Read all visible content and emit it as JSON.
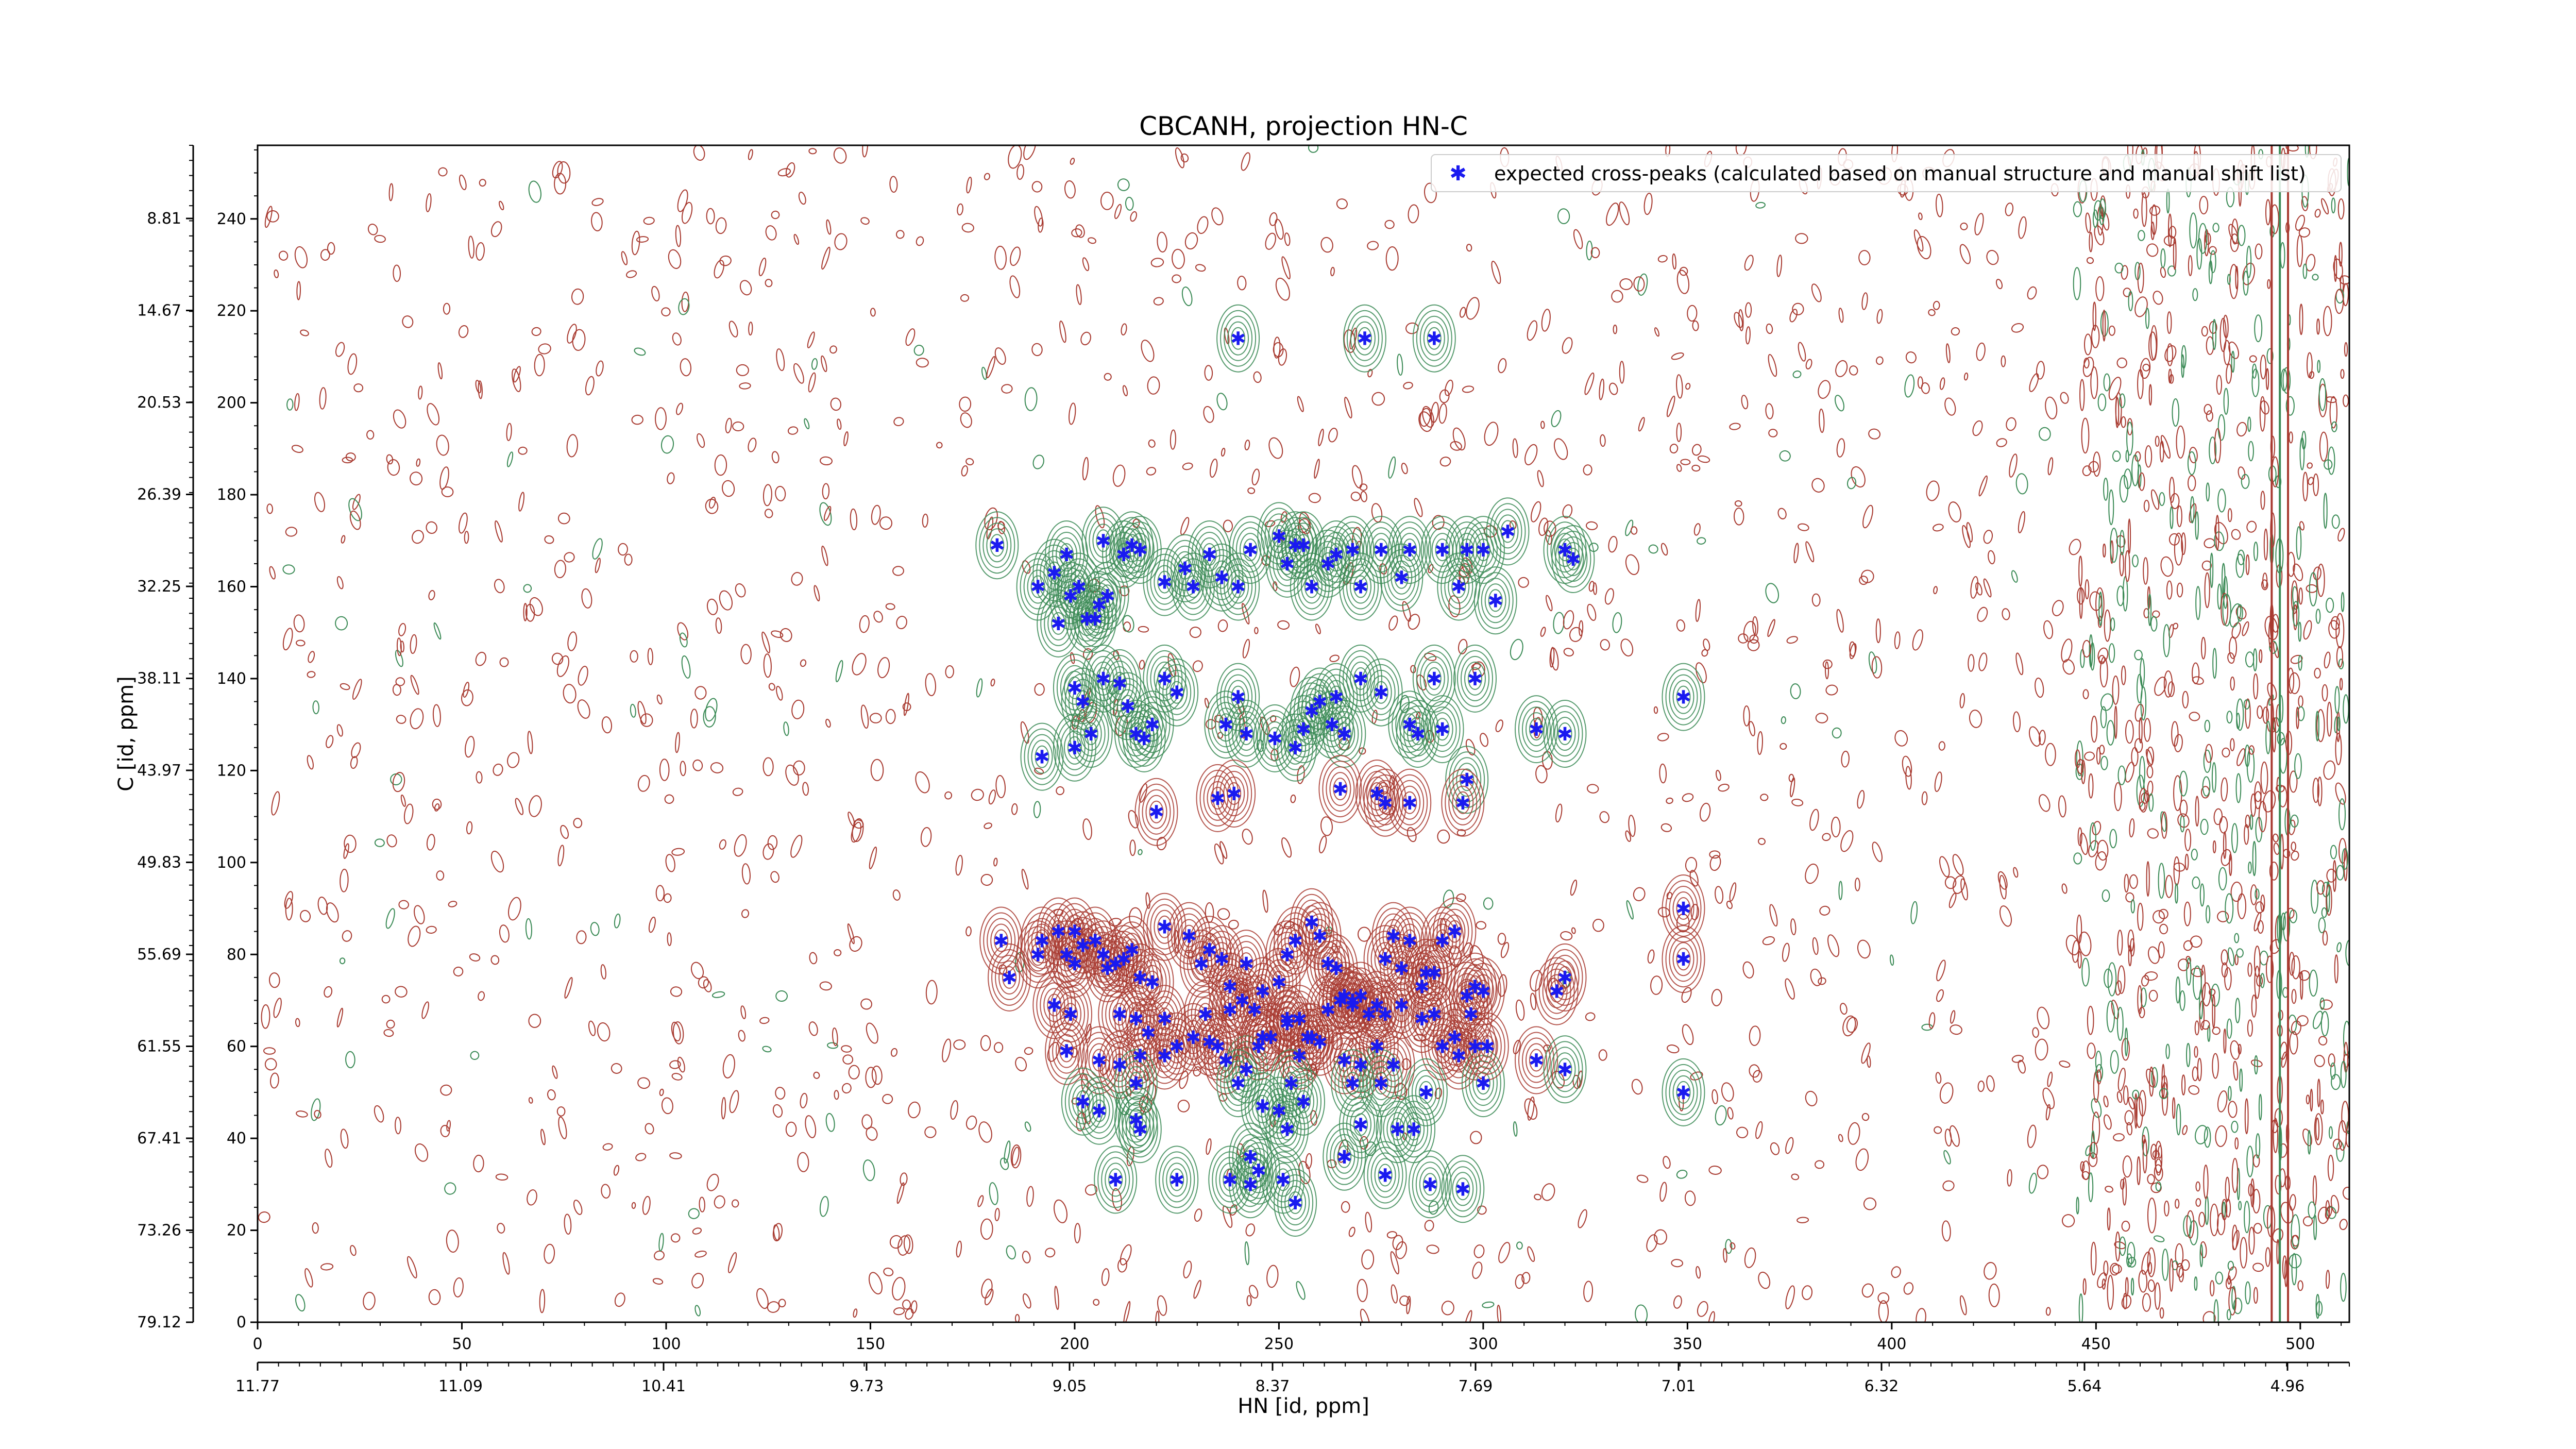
{
  "chart_data": {
    "type": "scatter",
    "title": "CBCANH, projection HN-C",
    "xlabel": "HN [id, ppm]",
    "ylabel": "C [id, ppm]",
    "xlim": [
      0,
      512
    ],
    "ylim": [
      0,
      256
    ],
    "x_ticks": [
      0,
      50,
      100,
      150,
      200,
      250,
      300,
      350,
      400,
      450,
      500
    ],
    "y_ticks": [
      0,
      20,
      40,
      60,
      80,
      100,
      120,
      140,
      160,
      180,
      200,
      220,
      240
    ],
    "hn_ppm_labels": [
      "11.77",
      "11.09",
      "10.41",
      "9.73",
      "9.05",
      "8.37",
      "7.69",
      "7.01",
      "6.32",
      "5.64",
      "4.96"
    ],
    "c_ppm_labels": [
      "8.81",
      "14.67",
      "20.53",
      "26.39",
      "32.25",
      "38.11",
      "43.97",
      "49.83",
      "55.69",
      "61.55",
      "67.41",
      "73.26",
      "79.12"
    ],
    "legend": {
      "position": "top-right",
      "label": "expected cross-peaks (calculated based on manual structure and manual shift list)"
    },
    "colors": {
      "positive_contour": "#3a8a55",
      "negative_contour": "#a83a30",
      "marker": "#1a1af0"
    },
    "series": [
      {
        "name": "expected cross-peaks (calculated based on manual structure and manual shift list)",
        "points": [
          [
            240,
            214
          ],
          [
            271,
            214
          ],
          [
            288,
            214
          ],
          [
            181,
            169
          ],
          [
            191,
            160
          ],
          [
            195,
            163
          ],
          [
            198,
            167
          ],
          [
            199,
            158
          ],
          [
            201,
            160
          ],
          [
            196,
            152
          ],
          [
            203,
            153
          ],
          [
            205,
            153
          ],
          [
            206,
            156
          ],
          [
            208,
            158
          ],
          [
            212,
            167
          ],
          [
            214,
            169
          ],
          [
            216,
            168
          ],
          [
            207,
            170
          ],
          [
            222,
            161
          ],
          [
            227,
            164
          ],
          [
            229,
            160
          ],
          [
            233,
            167
          ],
          [
            236,
            162
          ],
          [
            240,
            160
          ],
          [
            243,
            168
          ],
          [
            250,
            171
          ],
          [
            252,
            165
          ],
          [
            254,
            169
          ],
          [
            256,
            169
          ],
          [
            258,
            160
          ],
          [
            262,
            165
          ],
          [
            264,
            167
          ],
          [
            268,
            168
          ],
          [
            270,
            160
          ],
          [
            275,
            168
          ],
          [
            280,
            162
          ],
          [
            282,
            168
          ],
          [
            290,
            168
          ],
          [
            294,
            160
          ],
          [
            296,
            168
          ],
          [
            300,
            168
          ],
          [
            303,
            157
          ],
          [
            306,
            172
          ],
          [
            320,
            168
          ],
          [
            322,
            166
          ],
          [
            200,
            138
          ],
          [
            202,
            135
          ],
          [
            204,
            128
          ],
          [
            192,
            123
          ],
          [
            200,
            125
          ],
          [
            207,
            140
          ],
          [
            211,
            139
          ],
          [
            213,
            134
          ],
          [
            215,
            128
          ],
          [
            217,
            127
          ],
          [
            219,
            130
          ],
          [
            222,
            140
          ],
          [
            225,
            137
          ],
          [
            237,
            130
          ],
          [
            240,
            136
          ],
          [
            242,
            128
          ],
          [
            249,
            127
          ],
          [
            254,
            125
          ],
          [
            256,
            129
          ],
          [
            258,
            133
          ],
          [
            260,
            135
          ],
          [
            263,
            130
          ],
          [
            264,
            136
          ],
          [
            266,
            128
          ],
          [
            270,
            140
          ],
          [
            275,
            137
          ],
          [
            282,
            130
          ],
          [
            284,
            128
          ],
          [
            288,
            140
          ],
          [
            290,
            129
          ],
          [
            298,
            140
          ],
          [
            313,
            129
          ],
          [
            320,
            128
          ],
          [
            349,
            136
          ],
          [
            296,
            118
          ],
          [
            220,
            111
          ],
          [
            235,
            114
          ],
          [
            239,
            115
          ],
          [
            265,
            116
          ],
          [
            274,
            115
          ],
          [
            276,
            113
          ],
          [
            282,
            113
          ],
          [
            295,
            113
          ],
          [
            182,
            83
          ],
          [
            184,
            75
          ],
          [
            191,
            80
          ],
          [
            192,
            83
          ],
          [
            196,
            85
          ],
          [
            198,
            80
          ],
          [
            200,
            78
          ],
          [
            200,
            85
          ],
          [
            202,
            82
          ],
          [
            205,
            83
          ],
          [
            207,
            80
          ],
          [
            208,
            77
          ],
          [
            210,
            78
          ],
          [
            212,
            79
          ],
          [
            214,
            81
          ],
          [
            216,
            75
          ],
          [
            219,
            74
          ],
          [
            222,
            86
          ],
          [
            228,
            84
          ],
          [
            231,
            78
          ],
          [
            233,
            81
          ],
          [
            236,
            79
          ],
          [
            238,
            73
          ],
          [
            242,
            78
          ],
          [
            246,
            72
          ],
          [
            250,
            74
          ],
          [
            252,
            80
          ],
          [
            254,
            83
          ],
          [
            258,
            87
          ],
          [
            260,
            84
          ],
          [
            262,
            78
          ],
          [
            264,
            77
          ],
          [
            266,
            71
          ],
          [
            268,
            69
          ],
          [
            270,
            71
          ],
          [
            276,
            79
          ],
          [
            278,
            84
          ],
          [
            280,
            77
          ],
          [
            282,
            83
          ],
          [
            285,
            73
          ],
          [
            286,
            76
          ],
          [
            288,
            76
          ],
          [
            290,
            83
          ],
          [
            293,
            85
          ],
          [
            296,
            71
          ],
          [
            298,
            73
          ],
          [
            300,
            72
          ],
          [
            318,
            72
          ],
          [
            320,
            75
          ],
          [
            349,
            90
          ],
          [
            349,
            79
          ],
          [
            195,
            69
          ],
          [
            199,
            67
          ],
          [
            211,
            67
          ],
          [
            215,
            66
          ],
          [
            222,
            66
          ],
          [
            232,
            67
          ],
          [
            238,
            68
          ],
          [
            241,
            70
          ],
          [
            244,
            68
          ],
          [
            246,
            62
          ],
          [
            252,
            66
          ],
          [
            255,
            66
          ],
          [
            258,
            62
          ],
          [
            262,
            68
          ],
          [
            265,
            70
          ],
          [
            268,
            70
          ],
          [
            272,
            67
          ],
          [
            274,
            69
          ],
          [
            276,
            67
          ],
          [
            280,
            69
          ],
          [
            285,
            66
          ],
          [
            288,
            67
          ],
          [
            293,
            62
          ],
          [
            297,
            67
          ],
          [
            198,
            59
          ],
          [
            206,
            57
          ],
          [
            211,
            56
          ],
          [
            216,
            58
          ],
          [
            218,
            63
          ],
          [
            222,
            58
          ],
          [
            225,
            60
          ],
          [
            229,
            62
          ],
          [
            233,
            61
          ],
          [
            237,
            57
          ],
          [
            242,
            55
          ],
          [
            245,
            60
          ],
          [
            248,
            62
          ],
          [
            252,
            65
          ],
          [
            255,
            58
          ],
          [
            257,
            62
          ],
          [
            260,
            61
          ],
          [
            266,
            57
          ],
          [
            270,
            56
          ],
          [
            274,
            60
          ],
          [
            278,
            56
          ],
          [
            290,
            60
          ],
          [
            294,
            58
          ],
          [
            298,
            60
          ],
          [
            206,
            46
          ],
          [
            215,
            44
          ],
          [
            235,
            60
          ],
          [
            240,
            52
          ],
          [
            253,
            52
          ],
          [
            256,
            48
          ],
          [
            268,
            52
          ],
          [
            275,
            52
          ],
          [
            286,
            50
          ],
          [
            300,
            52
          ],
          [
            313,
            57
          ],
          [
            320,
            55
          ],
          [
            349,
            50
          ],
          [
            202,
            48
          ],
          [
            215,
            52
          ],
          [
            246,
            47
          ],
          [
            250,
            46
          ],
          [
            270,
            43
          ],
          [
            301,
            60
          ],
          [
            216,
            42
          ],
          [
            252,
            42
          ],
          [
            279,
            42
          ],
          [
            283,
            42
          ],
          [
            210,
            31
          ],
          [
            225,
            31
          ],
          [
            238,
            31
          ],
          [
            243,
            30
          ],
          [
            245,
            33
          ],
          [
            251,
            31
          ],
          [
            266,
            36
          ],
          [
            276,
            32
          ],
          [
            287,
            30
          ],
          [
            295,
            29
          ],
          [
            243,
            36
          ],
          [
            254,
            26
          ]
        ]
      }
    ]
  }
}
